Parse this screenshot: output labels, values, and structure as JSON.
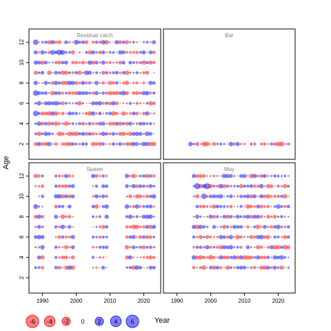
{
  "chart_data": {
    "type": "scatter",
    "subtype": "bubble-residuals",
    "layout": "2x2 lattice panels, shared axes",
    "ylabel": "Age",
    "xlabel": "Year",
    "x_ticks": [
      1990,
      2000,
      2010,
      2020
    ],
    "y_ticks": [
      2,
      4,
      6,
      8,
      10,
      12
    ],
    "xlim": [
      1986,
      2025
    ],
    "ylim": [
      0.5,
      13.3
    ],
    "colors": {
      "negative": "#ff0000",
      "positive": "#0000ff",
      "fill_alpha": 0.5
    },
    "legend": {
      "placement": "bottom-left",
      "values": [
        -6,
        -4,
        -2,
        0,
        2,
        4,
        6
      ],
      "labels": [
        "-6",
        "-4",
        "-2",
        "0",
        "2",
        "4",
        "6"
      ]
    },
    "panels": [
      {
        "title": "Residual catch",
        "year_range": [
          1988,
          2023
        ],
        "ages": [
          2,
          3,
          4,
          5,
          6,
          7,
          8,
          9,
          10,
          11,
          12
        ],
        "highlights": [
          {
            "year": 1988,
            "age": 12,
            "value": 4
          },
          {
            "year": 1988,
            "age": 7,
            "value": 4
          },
          {
            "year": 1988,
            "age": 5,
            "value": 4
          },
          {
            "year": 1995,
            "age": 11,
            "value": 4
          },
          {
            "year": 1993,
            "age": 11,
            "value": 3
          },
          {
            "year": 2000,
            "age": 12,
            "value": 3
          },
          {
            "year": 1996,
            "age": 11,
            "value": 3
          }
        ]
      },
      {
        "title": "Bar",
        "year_range": [
          1994,
          2023
        ],
        "ages": [
          2
        ],
        "highlights": [
          {
            "year": 1998,
            "age": 2,
            "value": -3
          },
          {
            "year": 2021,
            "age": 2,
            "value": -3
          }
        ]
      },
      {
        "title": "Spawn",
        "year_range": [
          1988,
          2023
        ],
        "ages": [
          3,
          4,
          5,
          6,
          7,
          8,
          9,
          10,
          11,
          12
        ],
        "year_gaps": [
          [
            1991,
            1993
          ],
          [
            2000,
            2004
          ],
          [
            2010,
            2014
          ]
        ],
        "highlights": [
          {
            "year": 1993,
            "age": 12,
            "value": -4
          },
          {
            "year": 1988,
            "age": 9,
            "value": 3
          }
        ]
      },
      {
        "title": "May",
        "year_range": [
          1995,
          2023
        ],
        "ages": [
          3,
          4,
          5,
          6,
          7,
          8,
          9,
          10,
          11,
          12
        ],
        "highlights": [
          {
            "year": 1996,
            "age": 11,
            "value": 5
          },
          {
            "year": 1999,
            "age": 11,
            "value": 5
          },
          {
            "year": 1998,
            "age": 10,
            "value": 4
          },
          {
            "year": 2000,
            "age": 4,
            "value": -3
          }
        ]
      }
    ]
  }
}
